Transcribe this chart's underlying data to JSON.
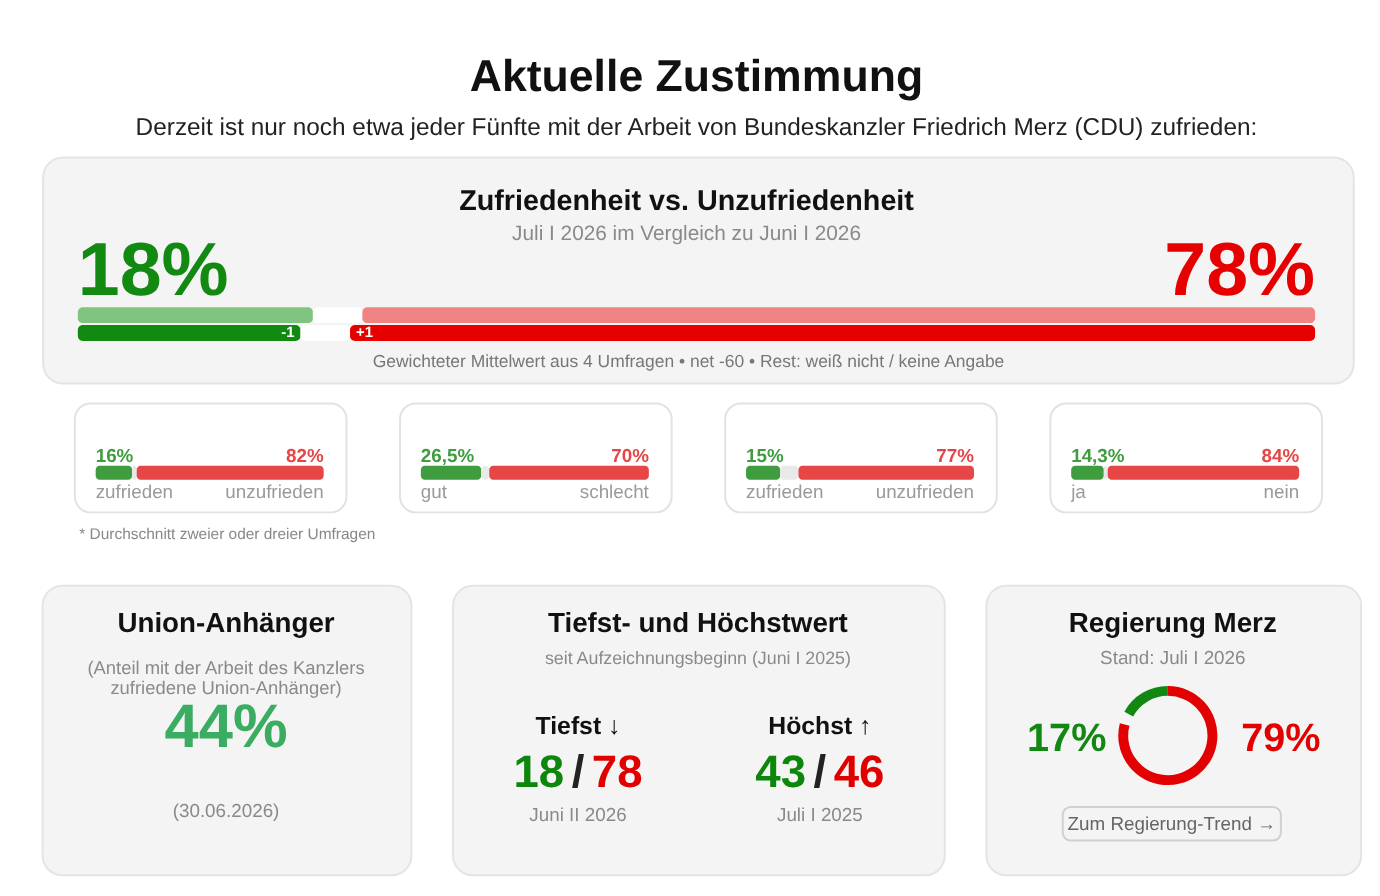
{
  "chart_data": [
    {
      "type": "other",
      "title": "Aktuelle Zustimmung",
      "subtitle": "Derzeit ist nur noch etwa jeder Fünfte mit der Arbeit von Bundeskanzler Friedrich Merz (CDU) zufrieden:"
    },
    {
      "type": "bar",
      "orientation": "horizontal",
      "stacked": true,
      "title": "Zufriedenheit vs. Unzufriedenheit",
      "subtitle": "Juli I 2026 im Vergleich zu Juni I 2026",
      "categories": [
        null,
        null
      ],
      "series": [
        {
          "colors": [
            "#80c480",
            "#128a12"
          ],
          "values": [
            19,
            18
          ],
          "value_labels": [
            null,
            "18%"
          ]
        },
        {
          "color": "#ffffff",
          "values": [
            4,
            4
          ]
        },
        {
          "colors": [
            "#f08484",
            "#e60000"
          ],
          "values": [
            77,
            78
          ],
          "value_labels": [
            null,
            "78%"
          ]
        }
      ],
      "annotations": [
        "-1",
        "+1",
        "Gewichteter Mittelwert aus 4 Umfragen • net -60 • Rest: weiß nicht / keine Angabe"
      ]
    },
    {
      "type": "bar",
      "orientation": "horizontal",
      "stacked": true,
      "categories": [
        null
      ],
      "series": [
        {
          "color": "#3f9c3f",
          "values": [
            16
          ],
          "value_labels": [
            "16%"
          ]
        },
        {
          "color": "#e9e9e9",
          "values": [
            2
          ]
        },
        {
          "color": "#e64646",
          "values": [
            82
          ],
          "value_labels": [
            "82%"
          ]
        }
      ],
      "annotations": [
        "zufrieden",
        "unzufrieden"
      ]
    },
    {
      "type": "bar",
      "orientation": "horizontal",
      "stacked": true,
      "categories": [
        null
      ],
      "series": [
        {
          "color": "#3f9c3f",
          "values": [
            26.5
          ],
          "value_labels": [
            "26,5%"
          ]
        },
        {
          "color": "#e9e9e9",
          "values": [
            3.5
          ]
        },
        {
          "color": "#e64646",
          "values": [
            70
          ],
          "value_labels": [
            "70%"
          ]
        }
      ],
      "annotations": [
        "gut",
        "schlecht"
      ]
    },
    {
      "type": "bar",
      "orientation": "horizontal",
      "stacked": true,
      "categories": [
        null
      ],
      "series": [
        {
          "color": "#3f9c3f",
          "values": [
            15
          ],
          "value_labels": [
            "15%"
          ]
        },
        {
          "color": "#e9e9e9",
          "values": [
            8
          ]
        },
        {
          "color": "#e64646",
          "values": [
            77
          ],
          "value_labels": [
            "77%"
          ]
        }
      ],
      "annotations": [
        "zufrieden",
        "unzufrieden"
      ]
    },
    {
      "type": "bar",
      "orientation": "horizontal",
      "stacked": true,
      "categories": [
        null
      ],
      "series": [
        {
          "color": "#3f9c3f",
          "values": [
            14.3
          ],
          "value_labels": [
            "14,3%"
          ]
        },
        {
          "color": "#e9e9e9",
          "values": [
            1.7
          ]
        },
        {
          "color": "#e64646",
          "values": [
            84
          ],
          "value_labels": [
            "84%"
          ]
        }
      ],
      "annotations": [
        "ja",
        "nein"
      ]
    },
    {
      "type": "other",
      "annotations": [
        "* Durchschnitt zweier oder dreier Umfragen"
      ]
    },
    {
      "type": "other",
      "title": "Union-Anhänger",
      "subtitle": "(Anteil mit der Arbeit des Kanzlers\nzufriedene Union-Anhänger)",
      "categories": [
        null
      ],
      "values": [
        44
      ],
      "value_labels": [
        "44%"
      ],
      "annotations": [
        "(30.06.2026)"
      ]
    },
    {
      "type": "other",
      "title": "Tiefst- und Höchstwert",
      "subtitle": "seit Aufzeichnungsbeginn (Juni I 2025)",
      "categories": [
        "Tiefst ↓",
        "Höchst ↑"
      ],
      "series": [
        {
          "values": [
            18,
            43
          ]
        },
        {
          "values": [
            78,
            46
          ]
        }
      ],
      "data_labels": true,
      "annotations": [
        "/",
        "/",
        "Juni II 2026",
        "Juli I 2025"
      ]
    },
    {
      "type": "donut",
      "title": "Regierung Merz",
      "subtitle": "Stand: Juli I 2026",
      "categories": [
        null,
        null
      ],
      "values": [
        17,
        79
      ],
      "colors": [
        "#128712",
        "#e30000"
      ],
      "value_labels": [
        "17%",
        "79%"
      ],
      "annotations": [
        "Zum Regierung-Trend →"
      ]
    }
  ]
}
